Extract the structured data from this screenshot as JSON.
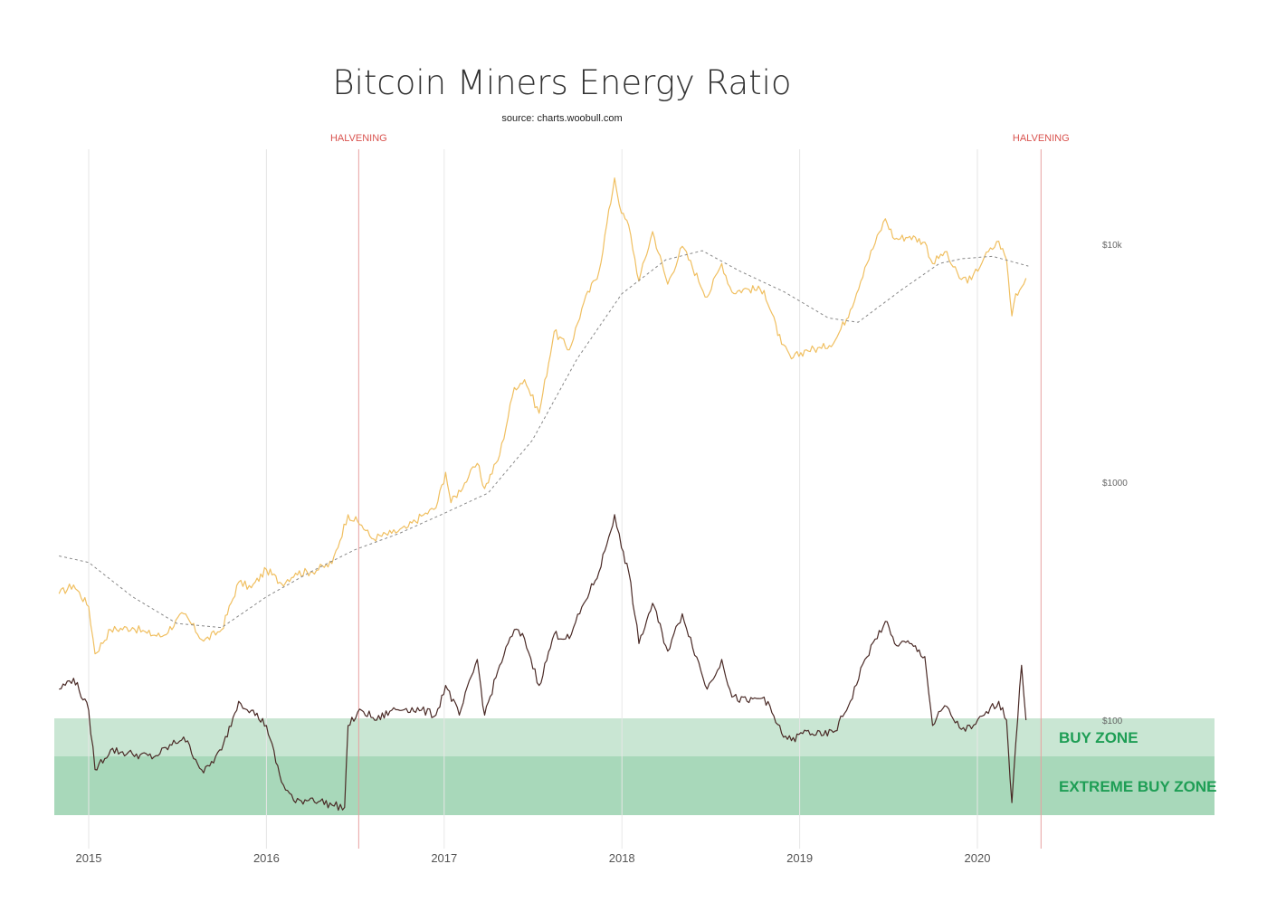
{
  "chart_data": {
    "type": "line",
    "title": "Bitcoin Miners Energy Ratio",
    "subtitle": "source: charts.woobull.com",
    "x_ticks": [
      "2015",
      "2016",
      "2017",
      "2018",
      "2019",
      "2020"
    ],
    "y_scale": "log",
    "y_ticks": [
      "$100",
      "$1000",
      "$10k"
    ],
    "ylim": [
      30,
      32000
    ],
    "x_range": [
      "2014-11-01",
      "2020-06-01"
    ],
    "grid": "vertical",
    "halvings": [
      {
        "date": "2016-07-09",
        "label": "HALVENING"
      },
      {
        "date": "2020-05-11",
        "label": "HALVENING"
      }
    ],
    "zones": [
      {
        "label": "BUY ZONE",
        "color": "#c9e6d3"
      },
      {
        "label": "EXTREME BUY ZONE",
        "color": "#a8d8ba"
      }
    ],
    "series": [
      {
        "color": "#f0bf60",
        "points": [
          [
            "2014-11-01",
            340
          ],
          [
            "2014-12-01",
            370
          ],
          [
            "2015-01-01",
            300
          ],
          [
            "2015-01-14",
            190
          ],
          [
            "2015-02-15",
            240
          ],
          [
            "2015-04-01",
            245
          ],
          [
            "2015-05-01",
            232
          ],
          [
            "2015-06-01",
            225
          ],
          [
            "2015-07-15",
            280
          ],
          [
            "2015-08-25",
            215
          ],
          [
            "2015-10-01",
            240
          ],
          [
            "2015-11-05",
            380
          ],
          [
            "2015-12-01",
            360
          ],
          [
            "2016-01-01",
            430
          ],
          [
            "2016-02-01",
            375
          ],
          [
            "2016-03-01",
            415
          ],
          [
            "2016-04-01",
            420
          ],
          [
            "2016-05-15",
            455
          ],
          [
            "2016-06-17",
            730
          ],
          [
            "2016-07-15",
            660
          ],
          [
            "2016-08-05",
            580
          ],
          [
            "2016-09-15",
            610
          ],
          [
            "2016-10-15",
            640
          ],
          [
            "2016-11-15",
            720
          ],
          [
            "2016-12-15",
            780
          ],
          [
            "2017-01-04",
            1100
          ],
          [
            "2017-01-15",
            820
          ],
          [
            "2017-02-20",
            1050
          ],
          [
            "2017-03-10",
            1200
          ],
          [
            "2017-03-25",
            940
          ],
          [
            "2017-04-25",
            1300
          ],
          [
            "2017-05-25",
            2500
          ],
          [
            "2017-06-15",
            2700
          ],
          [
            "2017-07-15",
            1950
          ],
          [
            "2017-08-15",
            4300
          ],
          [
            "2017-09-15",
            3600
          ],
          [
            "2017-10-15",
            5700
          ],
          [
            "2017-11-15",
            7700
          ],
          [
            "2017-12-17",
            19000
          ],
          [
            "2017-12-31",
            13500
          ],
          [
            "2018-01-15",
            12000
          ],
          [
            "2018-02-05",
            7000
          ],
          [
            "2018-03-05",
            11300
          ],
          [
            "2018-04-05",
            6800
          ],
          [
            "2018-05-05",
            9800
          ],
          [
            "2018-06-25",
            6000
          ],
          [
            "2018-07-25",
            8300
          ],
          [
            "2018-08-15",
            6300
          ],
          [
            "2018-09-15",
            6500
          ],
          [
            "2018-10-20",
            6400
          ],
          [
            "2018-11-25",
            3800
          ],
          [
            "2018-12-15",
            3300
          ],
          [
            "2019-01-15",
            3600
          ],
          [
            "2019-02-15",
            3650
          ],
          [
            "2019-03-15",
            3950
          ],
          [
            "2019-04-15",
            5300
          ],
          [
            "2019-05-15",
            8000
          ],
          [
            "2019-06-26",
            12800
          ],
          [
            "2019-07-15",
            10500
          ],
          [
            "2019-08-15",
            10800
          ],
          [
            "2019-09-15",
            10200
          ],
          [
            "2019-10-01",
            8300
          ],
          [
            "2019-10-26",
            9300
          ],
          [
            "2019-11-25",
            7200
          ],
          [
            "2019-12-20",
            7100
          ],
          [
            "2020-01-15",
            8800
          ],
          [
            "2020-02-14",
            10300
          ],
          [
            "2020-03-01",
            8600
          ],
          [
            "2020-03-12",
            5000
          ],
          [
            "2020-03-20",
            6200
          ],
          [
            "2020-04-01",
            6600
          ],
          [
            "2020-04-10",
            7200
          ]
        ]
      },
      {
        "color": "#888888",
        "dash": "3,3",
        "points": [
          [
            "2014-11-01",
            490
          ],
          [
            "2015-01-01",
            460
          ],
          [
            "2015-04-01",
            330
          ],
          [
            "2015-07-01",
            255
          ],
          [
            "2015-10-01",
            245
          ],
          [
            "2016-01-01",
            330
          ],
          [
            "2016-04-01",
            420
          ],
          [
            "2016-07-01",
            520
          ],
          [
            "2016-10-01",
            610
          ],
          [
            "2017-01-01",
            740
          ],
          [
            "2017-04-01",
            900
          ],
          [
            "2017-07-01",
            1500
          ],
          [
            "2017-10-01",
            3300
          ],
          [
            "2018-01-01",
            6200
          ],
          [
            "2018-04-01",
            8600
          ],
          [
            "2018-06-15",
            9400
          ],
          [
            "2018-09-01",
            7700
          ],
          [
            "2018-12-01",
            6300
          ],
          [
            "2019-03-01",
            4900
          ],
          [
            "2019-05-01",
            4700
          ],
          [
            "2019-08-01",
            6500
          ],
          [
            "2019-10-15",
            8300
          ],
          [
            "2019-12-01",
            8700
          ],
          [
            "2020-02-01",
            8900
          ],
          [
            "2020-04-15",
            8100
          ]
        ]
      },
      {
        "color": "#4a2a26",
        "points": [
          [
            "2014-11-01",
            135
          ],
          [
            "2014-12-01",
            150
          ],
          [
            "2015-01-01",
            110
          ],
          [
            "2015-01-14",
            62
          ],
          [
            "2015-02-15",
            75
          ],
          [
            "2015-04-01",
            72
          ],
          [
            "2015-05-15",
            70
          ],
          [
            "2015-07-15",
            85
          ],
          [
            "2015-08-25",
            60
          ],
          [
            "2015-10-01",
            75
          ],
          [
            "2015-11-05",
            120
          ],
          [
            "2015-12-01",
            110
          ],
          [
            "2016-01-01",
            95
          ],
          [
            "2016-02-01",
            55
          ],
          [
            "2016-03-01",
            45
          ],
          [
            "2016-04-01",
            47
          ],
          [
            "2016-05-15",
            44
          ],
          [
            "2016-06-10",
            43
          ],
          [
            "2016-06-17",
            95
          ],
          [
            "2016-07-15",
            110
          ],
          [
            "2016-08-15",
            100
          ],
          [
            "2016-09-15",
            110
          ],
          [
            "2016-10-15",
            112
          ],
          [
            "2016-11-15",
            110
          ],
          [
            "2016-12-15",
            105
          ],
          [
            "2017-01-04",
            140
          ],
          [
            "2017-02-01",
            105
          ],
          [
            "2017-03-10",
            180
          ],
          [
            "2017-03-25",
            105
          ],
          [
            "2017-04-25",
            170
          ],
          [
            "2017-05-25",
            240
          ],
          [
            "2017-06-15",
            220
          ],
          [
            "2017-07-15",
            140
          ],
          [
            "2017-08-15",
            230
          ],
          [
            "2017-09-15",
            220
          ],
          [
            "2017-10-15",
            310
          ],
          [
            "2017-11-15",
            420
          ],
          [
            "2017-12-17",
            730
          ],
          [
            "2017-12-31",
            530
          ],
          [
            "2018-01-15",
            420
          ],
          [
            "2018-02-05",
            210
          ],
          [
            "2018-03-05",
            310
          ],
          [
            "2018-04-05",
            195
          ],
          [
            "2018-05-05",
            280
          ],
          [
            "2018-06-25",
            135
          ],
          [
            "2018-07-25",
            180
          ],
          [
            "2018-08-15",
            125
          ],
          [
            "2018-09-15",
            120
          ],
          [
            "2018-10-20",
            125
          ],
          [
            "2018-11-25",
            88
          ],
          [
            "2018-12-15",
            82
          ],
          [
            "2019-01-15",
            90
          ],
          [
            "2019-02-15",
            86
          ],
          [
            "2019-03-15",
            90
          ],
          [
            "2019-04-15",
            120
          ],
          [
            "2019-05-15",
            180
          ],
          [
            "2019-06-26",
            260
          ],
          [
            "2019-07-15",
            210
          ],
          [
            "2019-08-15",
            210
          ],
          [
            "2019-09-15",
            185
          ],
          [
            "2019-10-01",
            95
          ],
          [
            "2019-10-26",
            115
          ],
          [
            "2019-11-25",
            93
          ],
          [
            "2019-12-20",
            92
          ],
          [
            "2020-01-15",
            105
          ],
          [
            "2020-02-14",
            120
          ],
          [
            "2020-03-01",
            100
          ],
          [
            "2020-03-12",
            45
          ],
          [
            "2020-03-20",
            80
          ],
          [
            "2020-04-01",
            170
          ],
          [
            "2020-04-10",
            100
          ]
        ]
      }
    ]
  }
}
